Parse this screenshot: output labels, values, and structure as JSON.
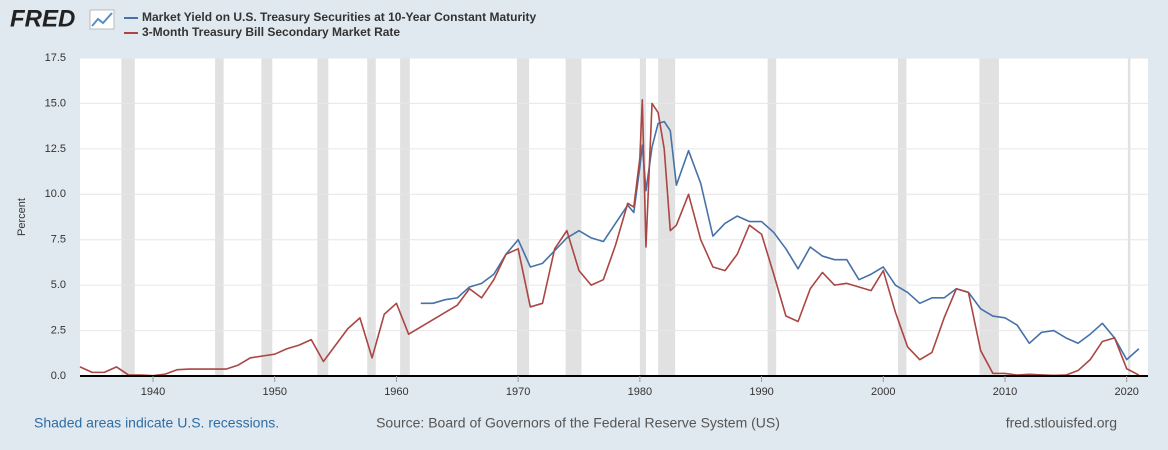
{
  "logo": "FRED",
  "chart_data": {
    "type": "line",
    "y_label": "Percent",
    "x": [
      1934,
      1935,
      1936,
      1937,
      1938,
      1939,
      1940,
      1941,
      1942,
      1943,
      1944,
      1945,
      1946,
      1947,
      1948,
      1949,
      1950,
      1951,
      1952,
      1953,
      1954,
      1955,
      1956,
      1957,
      1958,
      1959,
      1960,
      1961,
      1962,
      1963,
      1964,
      1965,
      1966,
      1967,
      1968,
      1969,
      1970,
      1971,
      1972,
      1973,
      1974,
      1975,
      1976,
      1977,
      1978,
      1979,
      1979.5,
      1980,
      1980.2,
      1980.5,
      1981,
      1981.5,
      1982,
      1982.5,
      1983,
      1984,
      1985,
      1986,
      1987,
      1988,
      1989,
      1990,
      1991,
      1992,
      1993,
      1994,
      1995,
      1996,
      1997,
      1998,
      1999,
      2000,
      2001,
      2002,
      2003,
      2004,
      2005,
      2006,
      2007,
      2008,
      2009,
      2010,
      2011,
      2012,
      2013,
      2014,
      2015,
      2016,
      2017,
      2018,
      2019,
      2020,
      2021
    ],
    "series": [
      {
        "name": "Market Yield on U.S. Treasury Securities at 10-Year Constant Maturity",
        "color": "#4572a7",
        "values": [
          null,
          null,
          null,
          null,
          null,
          null,
          null,
          null,
          null,
          null,
          null,
          null,
          null,
          null,
          null,
          null,
          null,
          null,
          null,
          null,
          null,
          null,
          null,
          null,
          null,
          null,
          null,
          null,
          4.0,
          4.0,
          4.2,
          4.3,
          4.9,
          5.1,
          5.6,
          6.7,
          7.5,
          6.0,
          6.2,
          6.9,
          7.6,
          8.0,
          7.6,
          7.4,
          8.4,
          9.4,
          9.0,
          11.5,
          12.7,
          10.2,
          12.6,
          13.9,
          14.0,
          13.5,
          10.5,
          12.4,
          10.6,
          7.7,
          8.4,
          8.8,
          8.5,
          8.5,
          7.9,
          7.0,
          5.9,
          7.1,
          6.6,
          6.4,
          6.4,
          5.3,
          5.6,
          6.0,
          5.0,
          4.6,
          4.0,
          4.3,
          4.3,
          4.8,
          4.6,
          3.7,
          3.3,
          3.2,
          2.8,
          1.8,
          2.4,
          2.5,
          2.1,
          1.8,
          2.3,
          2.9,
          2.1,
          0.9,
          1.5
        ]
      },
      {
        "name": "3-Month Treasury Bill Secondary Market Rate",
        "color": "#aa4643",
        "values": [
          0.5,
          0.2,
          0.2,
          0.5,
          0.05,
          0.05,
          0.02,
          0.1,
          0.35,
          0.38,
          0.38,
          0.38,
          0.38,
          0.6,
          1.0,
          1.1,
          1.2,
          1.5,
          1.7,
          2.0,
          0.8,
          1.7,
          2.6,
          3.2,
          1.0,
          3.4,
          4.0,
          2.3,
          2.7,
          3.1,
          3.5,
          3.9,
          4.8,
          4.3,
          5.3,
          6.7,
          7.0,
          3.8,
          4.0,
          7.0,
          8.0,
          5.8,
          5.0,
          5.3,
          7.2,
          9.5,
          9.3,
          12.0,
          15.2,
          7.1,
          15.0,
          14.5,
          12.5,
          8.0,
          8.3,
          10.0,
          7.5,
          6.0,
          5.8,
          6.7,
          8.3,
          7.8,
          5.6,
          3.3,
          3.0,
          4.8,
          5.7,
          5.0,
          5.1,
          4.9,
          4.7,
          5.8,
          3.5,
          1.6,
          0.9,
          1.3,
          3.2,
          4.8,
          4.6,
          1.4,
          0.15,
          0.14,
          0.05,
          0.09,
          0.06,
          0.03,
          0.05,
          0.3,
          0.9,
          1.9,
          2.1,
          0.4,
          0.05
        ]
      }
    ],
    "recessions": [
      [
        1937.4,
        1938.5
      ],
      [
        1945.1,
        1945.8
      ],
      [
        1948.9,
        1949.8
      ],
      [
        1953.5,
        1954.4
      ],
      [
        1957.6,
        1958.3
      ],
      [
        1960.3,
        1961.1
      ],
      [
        1969.9,
        1970.9
      ],
      [
        1973.9,
        1975.2
      ],
      [
        1980.0,
        1980.5
      ],
      [
        1981.5,
        1982.9
      ],
      [
        1990.5,
        1991.2
      ],
      [
        2001.2,
        2001.9
      ],
      [
        2007.9,
        2009.5
      ],
      [
        2020.1,
        2020.3
      ]
    ],
    "recession_color": "#e1e1e1",
    "xlim": [
      1934,
      2021.75
    ],
    "xticks": [
      1940,
      1950,
      1960,
      1970,
      1980,
      1990,
      2000,
      2010,
      2020
    ],
    "ylim": [
      0,
      17.5
    ],
    "yticks": [
      {
        "value": 0,
        "label": "0.0"
      },
      2.5,
      {
        "value": 5,
        "label": "5.0"
      },
      7.5,
      {
        "value": 10,
        "label": "10.0"
      },
      12.5,
      {
        "value": 15,
        "label": "15.0"
      },
      17.5
    ],
    "grid": true
  },
  "footer": {
    "note": "Shaded areas indicate U.S. recessions.",
    "source": "Source: Board of Governors of the Federal Reserve System (US)",
    "site": "fred.stlouisfed.org"
  }
}
